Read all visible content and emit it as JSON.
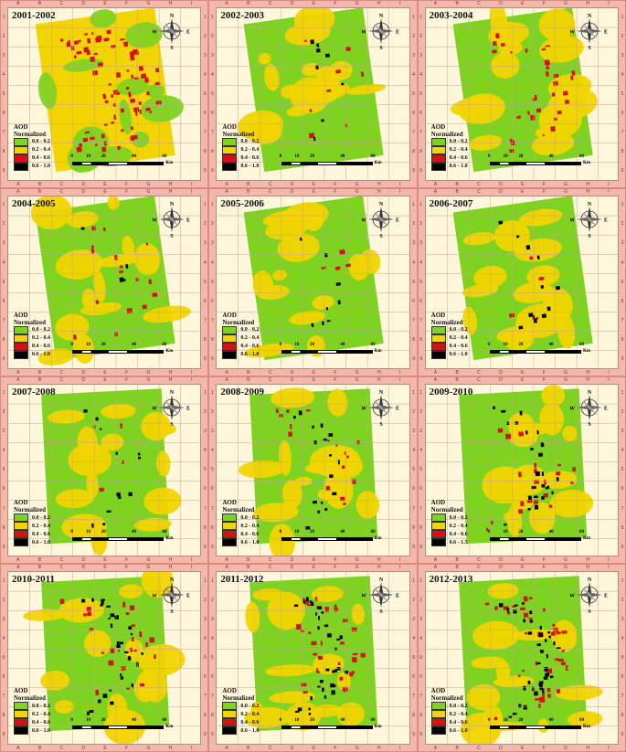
{
  "legend_title_line1": "AOD",
  "legend_title_line2": "Normalized",
  "legend_classes": [
    {
      "label": "0.0 - 0.2",
      "color": "#7ed321"
    },
    {
      "label": "0.2 - 0.4",
      "color": "#f2d400"
    },
    {
      "label": "0.4 - 0.6",
      "color": "#d41212"
    },
    {
      "label": "0.6 - 1.0",
      "color": "#000000"
    }
  ],
  "legend_alt_last": "0.6 - 1.5",
  "compass_labels": {
    "n": "N",
    "s": "S",
    "e": "E",
    "w": "W"
  },
  "scale": {
    "ticks": [
      "0",
      "10",
      "20",
      "40",
      "60"
    ],
    "unit": "Km"
  },
  "grid_cols": [
    "A",
    "B",
    "C",
    "D",
    "E",
    "F",
    "G",
    "H",
    "I"
  ],
  "grid_rows": [
    "1",
    "2",
    "3",
    "4",
    "5",
    "6",
    "7",
    "8",
    "9"
  ],
  "panels": [
    {
      "year": "2001-2002",
      "dominant": "yellow",
      "red": 0.2,
      "black": 0.0
    },
    {
      "year": "2002-2003",
      "dominant": "green",
      "red": 0.02,
      "black": 0.02
    },
    {
      "year": "2003-2004",
      "dominant": "green",
      "red": 0.08,
      "black": 0.0
    },
    {
      "year": "2004-2005",
      "dominant": "green",
      "red": 0.04,
      "black": 0.01
    },
    {
      "year": "2005-2006",
      "dominant": "green",
      "red": 0.01,
      "black": 0.02
    },
    {
      "year": "2006-2007",
      "dominant": "green",
      "red": 0.01,
      "black": 0.03
    },
    {
      "year": "2007-2008",
      "dominant": "green",
      "red": 0.01,
      "black": 0.03
    },
    {
      "year": "2008-2009",
      "dominant": "green",
      "red": 0.04,
      "black": 0.04
    },
    {
      "year": "2009-2010",
      "dominant": "green",
      "red": 0.05,
      "black": 0.06
    },
    {
      "year": "2010-2011",
      "dominant": "green",
      "red": 0.06,
      "black": 0.07
    },
    {
      "year": "2011-2012",
      "dominant": "green",
      "red": 0.08,
      "black": 0.08
    },
    {
      "year": "2012-2013",
      "dominant": "green",
      "red": 0.09,
      "black": 0.09
    }
  ]
}
